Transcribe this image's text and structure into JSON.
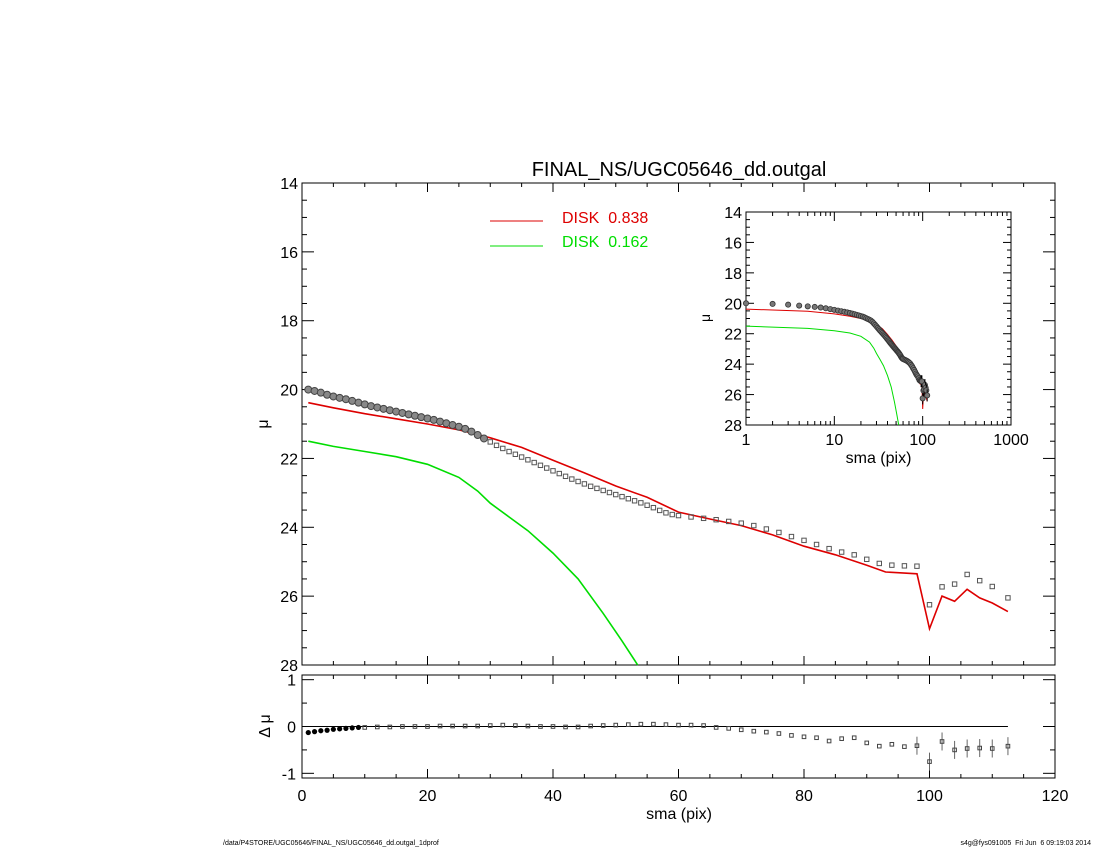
{
  "chart_data": [
    {
      "type": "scatter",
      "panel": "main",
      "title": "FINAL_NS/UGC05646_dd.outgal",
      "xlabel": "",
      "ylabel": "μ",
      "xlim": [
        0,
        120
      ],
      "ylim": [
        28,
        14
      ],
      "y_inverted": true,
      "x_ticks": [
        0,
        20,
        40,
        60,
        80,
        100,
        120
      ],
      "y_ticks": [
        14,
        16,
        18,
        20,
        22,
        24,
        26,
        28
      ],
      "legend_position": "top-center",
      "observed_color": "#555555",
      "observed": [
        [
          1,
          20.0
        ],
        [
          2,
          20.04
        ],
        [
          3,
          20.09
        ],
        [
          4,
          20.15
        ],
        [
          5,
          20.2
        ],
        [
          6,
          20.24
        ],
        [
          7,
          20.28
        ],
        [
          8,
          20.33
        ],
        [
          9,
          20.38
        ],
        [
          10,
          20.43
        ],
        [
          11,
          20.48
        ],
        [
          12,
          20.52
        ],
        [
          13,
          20.56
        ],
        [
          14,
          20.6
        ],
        [
          15,
          20.64
        ],
        [
          16,
          20.68
        ],
        [
          17,
          20.72
        ],
        [
          18,
          20.76
        ],
        [
          19,
          20.8
        ],
        [
          20,
          20.84
        ],
        [
          21,
          20.88
        ],
        [
          22,
          20.93
        ],
        [
          23,
          20.98
        ],
        [
          24,
          21.03
        ],
        [
          25,
          21.08
        ],
        [
          26,
          21.14
        ],
        [
          27,
          21.22
        ],
        [
          28,
          21.32
        ],
        [
          29,
          21.42
        ],
        [
          30,
          21.52
        ],
        [
          31,
          21.62
        ],
        [
          32,
          21.71
        ],
        [
          33,
          21.8
        ],
        [
          34,
          21.88
        ],
        [
          35,
          21.96
        ],
        [
          36,
          22.04
        ],
        [
          37,
          22.12
        ],
        [
          38,
          22.2
        ],
        [
          39,
          22.28
        ],
        [
          40,
          22.36
        ],
        [
          41,
          22.44
        ],
        [
          42,
          22.52
        ],
        [
          43,
          22.6
        ],
        [
          44,
          22.67
        ],
        [
          45,
          22.74
        ],
        [
          46,
          22.81
        ],
        [
          47,
          22.87
        ],
        [
          48,
          22.93
        ],
        [
          49,
          22.99
        ],
        [
          50,
          23.05
        ],
        [
          51,
          23.11
        ],
        [
          52,
          23.17
        ],
        [
          53,
          23.23
        ],
        [
          54,
          23.29
        ],
        [
          55,
          23.36
        ],
        [
          56,
          23.43
        ],
        [
          57,
          23.51
        ],
        [
          58,
          23.58
        ],
        [
          59,
          23.63
        ],
        [
          60,
          23.66
        ],
        [
          62,
          23.7
        ],
        [
          64,
          23.74
        ],
        [
          66,
          23.78
        ],
        [
          68,
          23.83
        ],
        [
          70,
          23.88
        ],
        [
          72,
          23.95
        ],
        [
          74,
          24.05
        ],
        [
          76,
          24.15
        ],
        [
          78,
          24.27
        ],
        [
          80,
          24.38
        ],
        [
          82,
          24.5
        ],
        [
          84,
          24.62
        ],
        [
          86,
          24.72
        ],
        [
          88,
          24.8
        ],
        [
          90,
          24.93
        ],
        [
          92,
          25.05
        ],
        [
          94,
          25.1
        ],
        [
          96,
          25.12
        ],
        [
          98,
          25.13
        ],
        [
          100,
          26.25
        ],
        [
          102,
          25.73
        ],
        [
          104,
          25.65
        ],
        [
          106,
          25.37
        ],
        [
          108,
          25.55
        ],
        [
          110,
          25.72
        ],
        [
          112.5,
          26.05
        ]
      ],
      "series": [
        {
          "name": "DISK  0.838",
          "color": "#dd0000",
          "points": [
            [
              1,
              20.38
            ],
            [
              5,
              20.53
            ],
            [
              10,
              20.7
            ],
            [
              15,
              20.85
            ],
            [
              20,
              21.0
            ],
            [
              25,
              21.17
            ],
            [
              30,
              21.4
            ],
            [
              35,
              21.68
            ],
            [
              40,
              22.05
            ],
            [
              45,
              22.42
            ],
            [
              50,
              22.8
            ],
            [
              55,
              23.13
            ],
            [
              60,
              23.56
            ],
            [
              65,
              23.76
            ],
            [
              70,
              23.95
            ],
            [
              75,
              24.22
            ],
            [
              80,
              24.55
            ],
            [
              85,
              24.8
            ],
            [
              90,
              25.1
            ],
            [
              93,
              25.3
            ],
            [
              96,
              25.33
            ],
            [
              98,
              25.35
            ],
            [
              100,
              26.95
            ],
            [
              102,
              26.0
            ],
            [
              104,
              26.15
            ],
            [
              106,
              25.8
            ],
            [
              108,
              26.05
            ],
            [
              110,
              26.2
            ],
            [
              112.5,
              26.45
            ]
          ]
        },
        {
          "name": "DISK  0.162",
          "color": "#00dd00",
          "points": [
            [
              1,
              21.5
            ],
            [
              5,
              21.65
            ],
            [
              10,
              21.8
            ],
            [
              15,
              21.95
            ],
            [
              20,
              22.17
            ],
            [
              25,
              22.55
            ],
            [
              28,
              22.95
            ],
            [
              30,
              23.3
            ],
            [
              33,
              23.7
            ],
            [
              36,
              24.1
            ],
            [
              40,
              24.75
            ],
            [
              44,
              25.5
            ],
            [
              48,
              26.5
            ],
            [
              51,
              27.3
            ],
            [
              53.5,
              28.0
            ]
          ]
        }
      ]
    },
    {
      "type": "scatter",
      "panel": "residual",
      "xlabel": "sma (pix)",
      "ylabel": "Δ μ",
      "xlim": [
        0,
        120
      ],
      "ylim": [
        -1.1,
        1.1
      ],
      "x_ticks": [
        0,
        20,
        40,
        60,
        80,
        100,
        120
      ],
      "y_ticks": [
        1,
        0,
        -1
      ],
      "residuals": [
        [
          1,
          -0.13
        ],
        [
          2,
          -0.11
        ],
        [
          3,
          -0.09
        ],
        [
          4,
          -0.08
        ],
        [
          5,
          -0.06
        ],
        [
          6,
          -0.05
        ],
        [
          7,
          -0.04
        ],
        [
          8,
          -0.03
        ],
        [
          9,
          -0.02
        ],
        [
          10,
          -0.02
        ],
        [
          12,
          -0.01
        ],
        [
          14,
          -0.01
        ],
        [
          16,
          0.0
        ],
        [
          18,
          0.0
        ],
        [
          20,
          0.0
        ],
        [
          22,
          0.01
        ],
        [
          24,
          0.01
        ],
        [
          26,
          0.01
        ],
        [
          28,
          0.01
        ],
        [
          30,
          0.02
        ],
        [
          32,
          0.03
        ],
        [
          34,
          0.02
        ],
        [
          36,
          0.01
        ],
        [
          38,
          0.0
        ],
        [
          40,
          0.0
        ],
        [
          42,
          -0.01
        ],
        [
          44,
          -0.01
        ],
        [
          46,
          0.01
        ],
        [
          48,
          0.02
        ],
        [
          50,
          0.03
        ],
        [
          52,
          0.04
        ],
        [
          54,
          0.05
        ],
        [
          56,
          0.05
        ],
        [
          58,
          0.04
        ],
        [
          60,
          0.03
        ],
        [
          62,
          0.03
        ],
        [
          64,
          0.02
        ],
        [
          66,
          -0.02
        ],
        [
          68,
          -0.04
        ],
        [
          70,
          -0.07
        ],
        [
          72,
          -0.1
        ],
        [
          74,
          -0.12
        ],
        [
          76,
          -0.15
        ],
        [
          78,
          -0.19
        ],
        [
          80,
          -0.22
        ],
        [
          82,
          -0.24
        ],
        [
          84,
          -0.31
        ],
        [
          86,
          -0.26
        ],
        [
          88,
          -0.24
        ],
        [
          90,
          -0.35
        ],
        [
          92,
          -0.42
        ],
        [
          94,
          -0.38
        ],
        [
          96,
          -0.43
        ],
        [
          98,
          -0.41
        ],
        [
          100,
          -0.75
        ],
        [
          102,
          -0.32
        ],
        [
          104,
          -0.5
        ],
        [
          106,
          -0.47
        ],
        [
          108,
          -0.46
        ],
        [
          110,
          -0.47
        ],
        [
          112.5,
          -0.42
        ]
      ]
    },
    {
      "type": "line",
      "panel": "inset",
      "xlabel": "sma (pix)",
      "ylabel": "μ",
      "x_scale": "log",
      "xlim": [
        1,
        1000
      ],
      "ylim": [
        28,
        14
      ],
      "x_ticks": [
        1,
        10,
        100,
        1000
      ],
      "y_ticks": [
        14,
        16,
        18,
        20,
        22,
        24,
        26,
        28
      ]
    }
  ],
  "footer": {
    "left": "/data/P4STORE/UGC05646/FINAL_NS/UGC05646_dd.outgal_1dprof",
    "right": "s4g@fys091005  Fri Jun  6 09:19:03 2014"
  }
}
